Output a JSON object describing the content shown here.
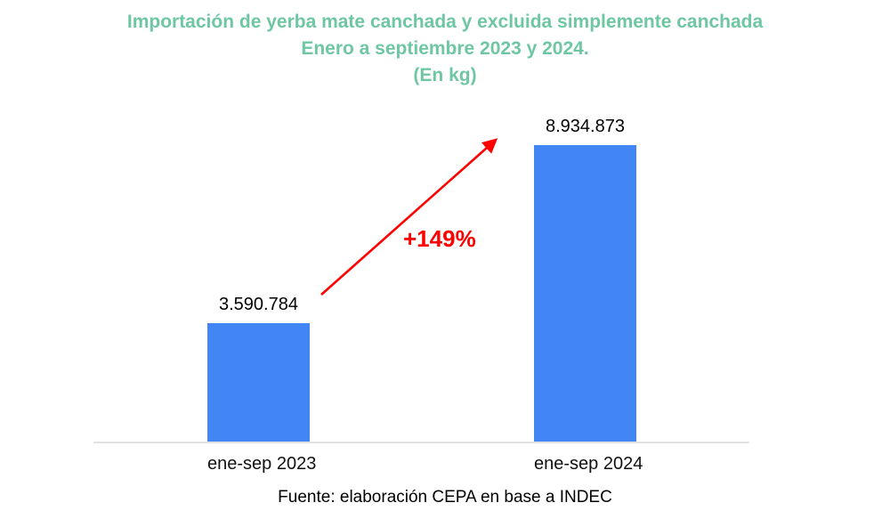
{
  "title": {
    "line1": "Importación de yerba mate canchada y excluida simplemente canchada",
    "line2": "Enero a septiembre 2023 y 2024.",
    "line3": "(En kg)"
  },
  "source": "Fuente: elaboración CEPA en base a INDEC",
  "annotation": {
    "growth_label": "+149%"
  },
  "colors": {
    "title": "#6ec7a2",
    "bar": "#4285f4",
    "annotation": "#ff0000",
    "axis_line": "#e2e2e2",
    "text": "#000000"
  },
  "chart_data": {
    "type": "bar",
    "categories": [
      "ene-sep 2023",
      "ene-sep 2024"
    ],
    "values": [
      3590784,
      8934873
    ],
    "value_labels": [
      "3.590.784",
      "8.934.873"
    ],
    "title": "Importación de yerba mate canchada y excluida simplemente canchada Enero a septiembre 2023 y 2024. (En kg)",
    "xlabel": "",
    "ylabel": "",
    "ylim": [
      0,
      9500000
    ],
    "grid": false,
    "legend": false,
    "bar_color": "#4285f4",
    "annotations": [
      {
        "type": "arrow",
        "text": "+149%",
        "color": "#ff0000",
        "from_category": "ene-sep 2023",
        "to_category": "ene-sep 2024"
      }
    ],
    "source": "Fuente: elaboración CEPA en base a INDEC"
  }
}
